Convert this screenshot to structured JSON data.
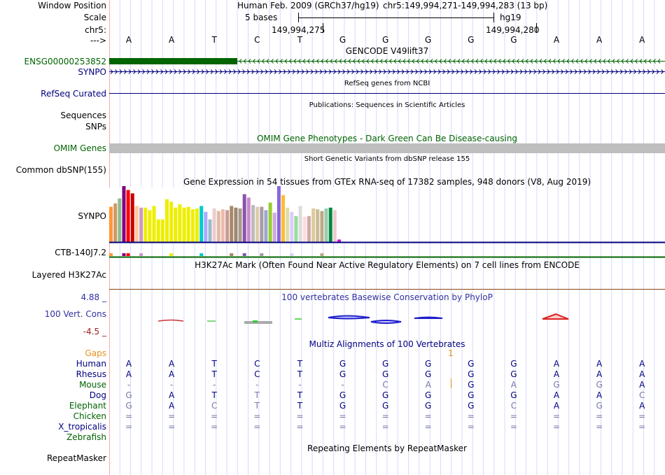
{
  "colors": {
    "label_blue": "#000080",
    "gencode_green": "#006400",
    "omim_green": "#006400",
    "omim_bar": "#bebebe",
    "phylop_blue": "#3030a0",
    "phylop_red": "#a02020",
    "gaps_orange": "#e8901a",
    "guide_line": "#d8d8ff",
    "red_guide": "#ffaaaa",
    "h3k27ac_line": "#8b4513"
  },
  "header": {
    "window_position_label": "Window Position",
    "scale_label": "Scale",
    "chrom_label": "chr5:",
    "arrow_label": "--->",
    "assembly": "Human Feb. 2009 (GRCh37/hg19)",
    "position": "chr5:149,994,271-149,994,283 (13 bp)",
    "scale_text": "5 bases",
    "scale_db": "hg19",
    "coord_left": "149,994,275",
    "coord_right": "149,994,280"
  },
  "sequence": [
    "A",
    "A",
    "T",
    "C",
    "T",
    "G",
    "G",
    "G",
    "G",
    "G",
    "A",
    "A",
    "A"
  ],
  "tracks": {
    "gencode_title": "GENCODE V49lift37",
    "gene1_label": "ENSG00000253852",
    "gene2_label": "SYNPO",
    "refseq_label": "RefSeq Curated",
    "refseq_title": "RefSeq genes from NCBI",
    "pubs_title": "Publications: Sequences in Scientific Articles",
    "sequences_label": "Sequences",
    "snps_label": "SNPs",
    "omim_title": "OMIM Gene Phenotypes - Dark Green Can Be Disease-causing",
    "omim_label": "OMIM Genes",
    "dbsnp_title": "Short Genetic Variants from dbSNP release 155",
    "dbsnp_label": "Common dbSNP(155)",
    "gtex_title": "Gene Expression in 54 tissues from GTEx RNA-seq of 17382 samples, 948 donors (V8, Aug 2019)",
    "gtex_label1": "SYNPO",
    "gtex_label2": "CTB-140J7.2",
    "h3k27ac_title": "H3K27Ac Mark (Often Found Near Active Regulatory Elements) on 7 cell lines from ENCODE",
    "h3k27ac_label": "Layered H3K27Ac",
    "phylop_title": "100 vertebrates Basewise Conservation by PhyloP",
    "phylop_label": "100 Vert. Cons",
    "phylop_max": "4.88 _",
    "phylop_min": "-4.5 _",
    "multiz_title": "Multiz Alignments of 100 Vertebrates",
    "repeat_title": "Repeating Elements by RepeatMasker",
    "repeat_label": "RepeatMasker"
  },
  "gaps": {
    "label": "Gaps",
    "marker": "1"
  },
  "gtex_bars": [
    {
      "v": 0.42,
      "c": "#ff9933"
    },
    {
      "v": 0.46,
      "c": "#cc9966"
    },
    {
      "v": 0.52,
      "c": "#8fbc8f"
    },
    {
      "v": 0.67,
      "c": "#800080"
    },
    {
      "v": 0.62,
      "c": "#ff0000"
    },
    {
      "v": 0.58,
      "c": "#cc0000"
    },
    {
      "v": 0.43,
      "c": "#ffcc99"
    },
    {
      "v": 0.41,
      "c": "#cc99cc"
    },
    {
      "v": 0.41,
      "c": "#eeee00"
    },
    {
      "v": 0.38,
      "c": "#eeee00"
    },
    {
      "v": 0.43,
      "c": "#eeee00"
    },
    {
      "v": 0.27,
      "c": "#eeee00"
    },
    {
      "v": 0.27,
      "c": "#eeee00"
    },
    {
      "v": 0.51,
      "c": "#eeee00"
    },
    {
      "v": 0.48,
      "c": "#eeee00"
    },
    {
      "v": 0.41,
      "c": "#eeee00"
    },
    {
      "v": 0.45,
      "c": "#eeee00"
    },
    {
      "v": 0.41,
      "c": "#eeee00"
    },
    {
      "v": 0.42,
      "c": "#eeee00"
    },
    {
      "v": 0.39,
      "c": "#eeee00"
    },
    {
      "v": 0.4,
      "c": "#eeee00"
    },
    {
      "v": 0.43,
      "c": "#00cccc"
    },
    {
      "v": 0.36,
      "c": "#aaaaff"
    },
    {
      "v": 0.27,
      "c": "#99bbcc"
    },
    {
      "v": 0.4,
      "c": "#eecccc"
    },
    {
      "v": 0.37,
      "c": "#ddbbaa"
    },
    {
      "v": 0.39,
      "c": "#eebbaa"
    },
    {
      "v": 0.38,
      "c": "#cc9999"
    },
    {
      "v": 0.43,
      "c": "#aa8866"
    },
    {
      "v": 0.41,
      "c": "#998877"
    },
    {
      "v": 0.4,
      "c": "#aa9988"
    },
    {
      "v": 0.57,
      "c": "#8855aa"
    },
    {
      "v": 0.53,
      "c": "#cc88cc"
    },
    {
      "v": 0.44,
      "c": "#bbbbbb"
    },
    {
      "v": 0.42,
      "c": "#ddccaa"
    },
    {
      "v": 0.42,
      "c": "#aa99aa"
    },
    {
      "v": 0.38,
      "c": "#99aacc"
    },
    {
      "v": 0.47,
      "c": "#99cc33"
    },
    {
      "v": 0.35,
      "c": "#ccaadd"
    },
    {
      "v": 0.67,
      "c": "#8866dd"
    },
    {
      "v": 0.56,
      "c": "#ffbb33"
    },
    {
      "v": 0.41,
      "c": "#ddddaa"
    },
    {
      "v": 0.36,
      "c": "#ddccff"
    },
    {
      "v": 0.31,
      "c": "#99dd99"
    },
    {
      "v": 0.43,
      "c": "#dddddd"
    },
    {
      "v": 0.3,
      "c": "#ffdddd"
    },
    {
      "v": 0.31,
      "c": "#ccaaaa"
    },
    {
      "v": 0.4,
      "c": "#ddcc99"
    },
    {
      "v": 0.39,
      "c": "#ccbb99"
    },
    {
      "v": 0.37,
      "c": "#bbaa88"
    },
    {
      "v": 0.4,
      "c": "#99ccaa"
    },
    {
      "v": 0.41,
      "c": "#008844"
    },
    {
      "v": 0.38,
      "c": "#eecccc"
    },
    {
      "v": 0.03,
      "c": "#dd00dd"
    }
  ],
  "species": [
    {
      "name": "Human",
      "bases": [
        "A",
        "A",
        "T",
        "C",
        "T",
        "G",
        "G",
        "G",
        "G",
        "G",
        "A",
        "A",
        "A"
      ],
      "dim": [
        0,
        0,
        0,
        0,
        0,
        0,
        0,
        0,
        0,
        0,
        0,
        0,
        0
      ]
    },
    {
      "name": "Rhesus",
      "bases": [
        "A",
        "A",
        "T",
        "C",
        "T",
        "G",
        "G",
        "G",
        "G",
        "G",
        "A",
        "A",
        "A"
      ],
      "dim": [
        0,
        0,
        0,
        0,
        0,
        0,
        0,
        0,
        0,
        0,
        0,
        0,
        0
      ]
    },
    {
      "name": "Mouse",
      "bases": [
        "-",
        "-",
        "-",
        "-",
        "-",
        "-",
        "C",
        "A",
        "G",
        "A",
        "G",
        "G",
        "A"
      ],
      "dim": [
        1,
        1,
        1,
        1,
        1,
        1,
        1,
        1,
        0,
        1,
        1,
        1,
        0
      ]
    },
    {
      "name": "Dog",
      "bases": [
        "G",
        "A",
        "T",
        "T",
        "T",
        "G",
        "G",
        "G",
        "G",
        "G",
        "A",
        "A",
        "C"
      ],
      "dim": [
        1,
        0,
        0,
        1,
        0,
        0,
        0,
        0,
        0,
        0,
        0,
        0,
        1
      ]
    },
    {
      "name": "Elephant",
      "bases": [
        "G",
        "A",
        "C",
        "T",
        "T",
        "G",
        "G",
        "G",
        "G",
        "C",
        "A",
        "G",
        "A"
      ],
      "dim": [
        1,
        0,
        1,
        1,
        0,
        0,
        0,
        0,
        0,
        1,
        0,
        1,
        0
      ]
    },
    {
      "name": "Chicken",
      "bases": [
        "=",
        "=",
        "=",
        "=",
        "=",
        "=",
        "=",
        "=",
        "=",
        "=",
        "=",
        "=",
        "="
      ],
      "dim": [
        1,
        1,
        1,
        1,
        1,
        1,
        1,
        1,
        1,
        1,
        1,
        1,
        1
      ]
    },
    {
      "name": "X_tropicalis",
      "bases": [
        "=",
        "=",
        "=",
        "=",
        "=",
        "=",
        "=",
        "=",
        "=",
        "=",
        "=",
        "=",
        "="
      ],
      "dim": [
        1,
        1,
        1,
        1,
        1,
        1,
        1,
        1,
        1,
        1,
        1,
        1,
        1
      ]
    },
    {
      "name": "Zebrafish",
      "bases": [
        "",
        "",
        "",
        "",
        "",
        "",
        "",
        "",
        "",
        "",
        "",
        "",
        ""
      ],
      "dim": [
        0,
        0,
        0,
        0,
        0,
        0,
        0,
        0,
        0,
        0,
        0,
        0,
        0
      ]
    }
  ]
}
